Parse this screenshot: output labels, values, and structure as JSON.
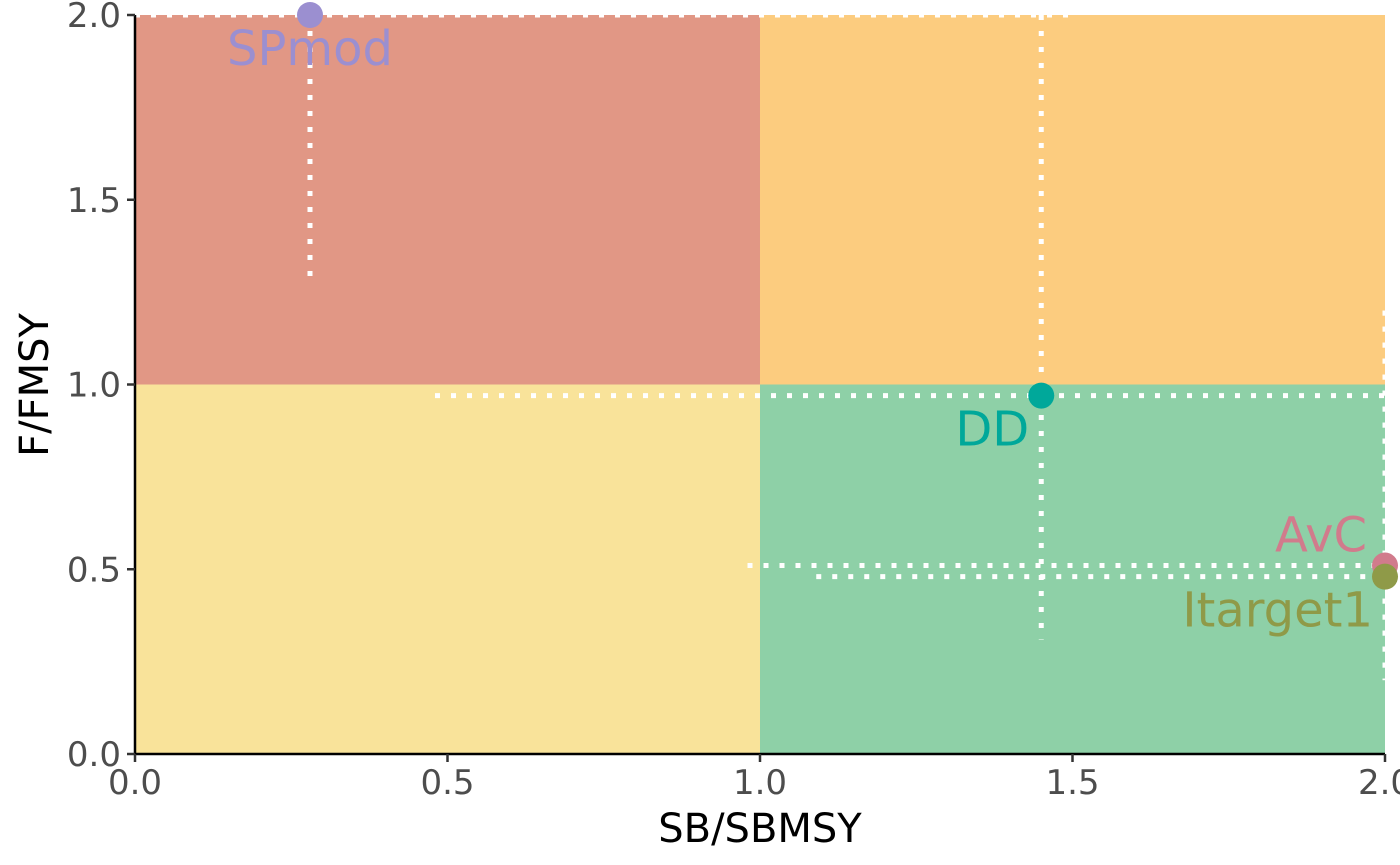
{
  "chart_data": {
    "type": "scatter",
    "title": "",
    "xlabel": "SB/SBMSY",
    "ylabel": "F/FMSY",
    "xlim": [
      0,
      2
    ],
    "ylim": [
      0,
      2
    ],
    "x_ticks": [
      "0.0",
      "0.5",
      "1.0",
      "1.5",
      "2.0"
    ],
    "y_ticks": [
      "0.0",
      "0.5",
      "1.0",
      "1.5",
      "2.0"
    ],
    "grid": false,
    "legend": "none",
    "quadrants": [
      {
        "x": [
          0,
          1
        ],
        "y": [
          1,
          2
        ],
        "color": "#E19785"
      },
      {
        "x": [
          1,
          2
        ],
        "y": [
          1,
          2
        ],
        "color": "#FCCC7F"
      },
      {
        "x": [
          0,
          1
        ],
        "y": [
          0,
          1
        ],
        "color": "#F9E39A"
      },
      {
        "x": [
          1,
          2
        ],
        "y": [
          0,
          1
        ],
        "color": "#8ED0A7"
      }
    ],
    "points": [
      {
        "label": "SPmod",
        "x": 0.28,
        "y": 2.0,
        "color": "#9B8FD0",
        "x_interval": [
          0,
          1.5
        ],
        "y_interval": [
          1.27,
          2.0
        ]
      },
      {
        "label": "DD",
        "x": 1.45,
        "y": 0.97,
        "color": "#00A89A",
        "x_interval": [
          0.48,
          2.0
        ],
        "y_interval": [
          0.31,
          2.0
        ]
      },
      {
        "label": "AvC",
        "x": 2.0,
        "y": 0.51,
        "color": "#D17B8C",
        "x_interval": [
          0.98,
          2.0
        ],
        "y_interval": [
          0.2,
          1.2
        ]
      },
      {
        "label": "Itarget1",
        "x": 2.0,
        "y": 0.48,
        "color": "#8F9A48",
        "x_interval": [
          1.09,
          2.0
        ],
        "y_interval": [
          0.2,
          1.2
        ]
      }
    ]
  }
}
